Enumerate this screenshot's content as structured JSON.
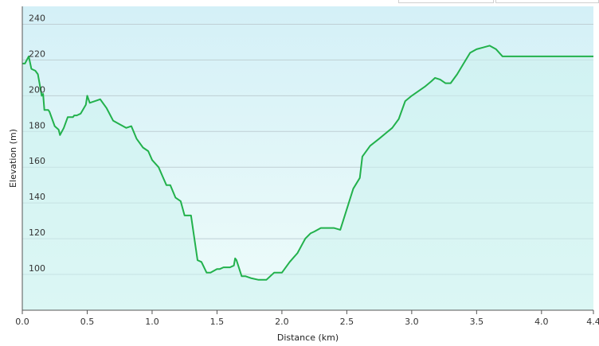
{
  "chart_data": {
    "type": "area",
    "title": "",
    "xlabel": "Distance  (km)",
    "ylabel": "Elevation (m)",
    "xlim": [
      0,
      4.4
    ],
    "ylim": [
      80,
      250
    ],
    "x_ticks": [
      0.0,
      0.5,
      1.0,
      1.5,
      2.0,
      2.5,
      3.0,
      3.5,
      4.0,
      4.4
    ],
    "x_tick_labels": [
      "0.0",
      "0.5",
      "1.0",
      "1.5",
      "2.0",
      "2.5",
      "3.0",
      "3.5",
      "4.0",
      "4.4"
    ],
    "y_ticks": [
      100,
      120,
      140,
      160,
      180,
      200,
      220,
      240
    ],
    "y_tick_labels": [
      "100",
      "120",
      "140",
      "160",
      "180",
      "200",
      "220",
      "240"
    ],
    "grid": true,
    "legend": "none",
    "series": [
      {
        "color": "#22b14c",
        "fill": "#ccf2ee",
        "x": [
          0.0,
          0.02,
          0.05,
          0.07,
          0.1,
          0.12,
          0.15,
          0.16,
          0.17,
          0.2,
          0.21,
          0.25,
          0.28,
          0.29,
          0.32,
          0.35,
          0.39,
          0.4,
          0.42,
          0.45,
          0.49,
          0.5,
          0.52,
          0.56,
          0.6,
          0.65,
          0.7,
          0.75,
          0.8,
          0.84,
          0.88,
          0.93,
          0.97,
          1.0,
          1.05,
          1.08,
          1.11,
          1.14,
          1.18,
          1.22,
          1.25,
          1.3,
          1.35,
          1.38,
          1.42,
          1.45,
          1.5,
          1.52,
          1.55,
          1.6,
          1.63,
          1.64,
          1.65,
          1.69,
          1.72,
          1.76,
          1.82,
          1.88,
          1.94,
          2.0,
          2.06,
          2.12,
          2.18,
          2.22,
          2.25,
          2.3,
          2.4,
          2.45,
          2.55,
          2.6,
          2.62,
          2.68,
          2.75,
          2.8,
          2.85,
          2.9,
          2.95,
          3.0,
          3.1,
          3.15,
          3.18,
          3.22,
          3.26,
          3.3,
          3.35,
          3.4,
          3.45,
          3.5,
          3.55,
          3.6,
          3.65,
          3.7,
          3.75,
          3.8,
          3.85,
          3.9,
          3.95,
          4.0,
          4.05,
          4.1,
          4.15,
          4.2,
          4.25,
          4.28,
          4.3,
          4.35,
          4.4
        ],
        "y": [
          218,
          218,
          222,
          215,
          214,
          212,
          200,
          201,
          192,
          192,
          191,
          183,
          181,
          178,
          182,
          188,
          188,
          189,
          189,
          190,
          195,
          200,
          196,
          197,
          198,
          193,
          186,
          184,
          182,
          183,
          176,
          171,
          169,
          164,
          160,
          155,
          150,
          150,
          143,
          141,
          133,
          133,
          108,
          107,
          101,
          101,
          103,
          103,
          104,
          104,
          105,
          109,
          108,
          99,
          99,
          98,
          97,
          97,
          101,
          101,
          107,
          112,
          120,
          123,
          124,
          126,
          126,
          125,
          148,
          154,
          166,
          172,
          176,
          179,
          182,
          187,
          197,
          200,
          205,
          208,
          210,
          209,
          207,
          207,
          212,
          218,
          224,
          226,
          227,
          228,
          226,
          222,
          222,
          222,
          222,
          222,
          222,
          222,
          222,
          222,
          222,
          222,
          222,
          222,
          222,
          222,
          222
        ]
      }
    ]
  }
}
